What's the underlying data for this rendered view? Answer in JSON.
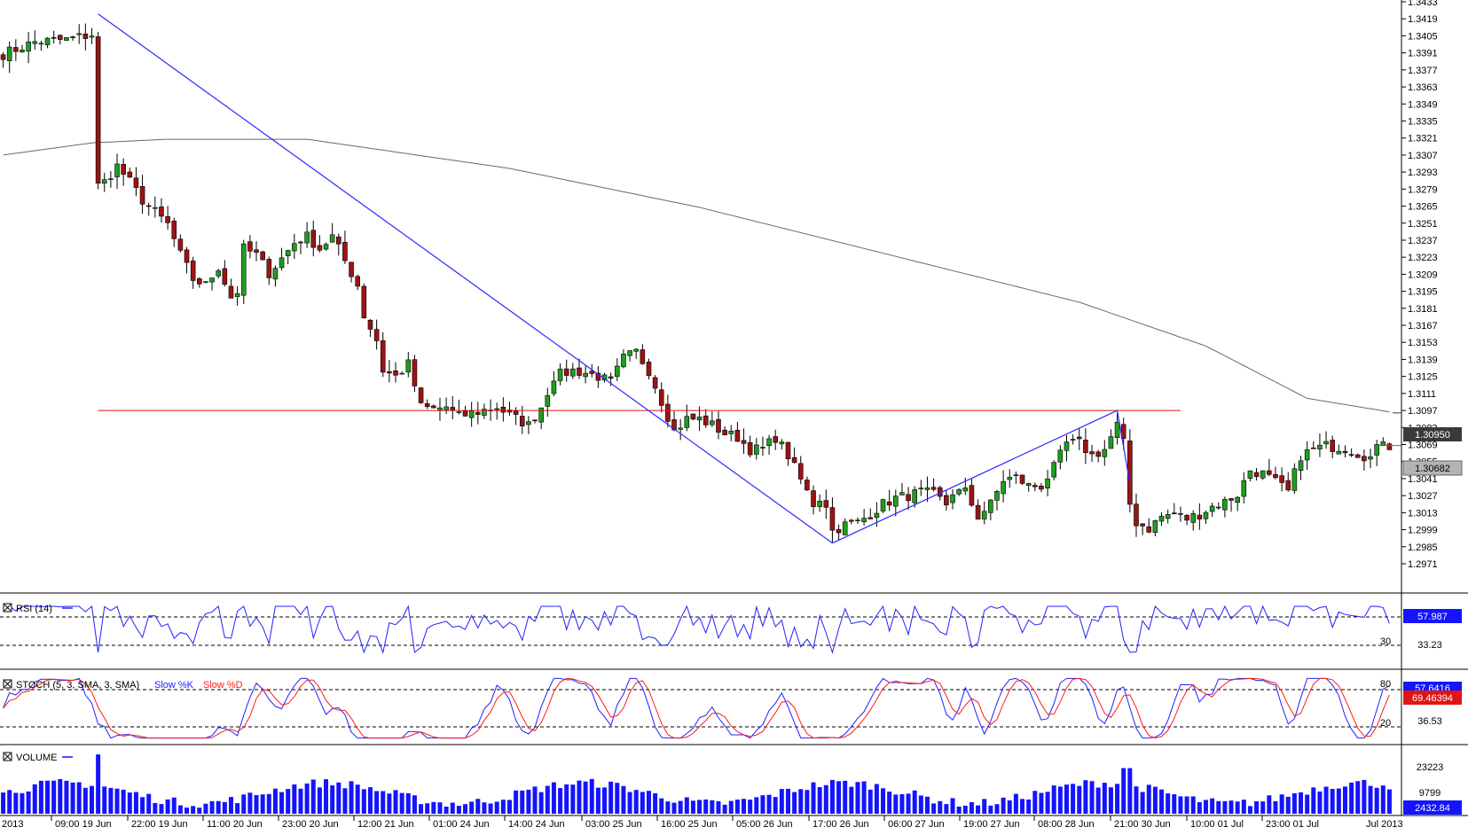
{
  "colors": {
    "background": "#ffffff",
    "bull_candle": "#1e9e1e",
    "bear_candle": "#9b1414",
    "wick": "#000000",
    "moving_average": "#6a6a6a",
    "trendline": "#2b2bff",
    "horizontal_level": "#e01010",
    "rsi_line": "#2020ff",
    "stoch_k": "#2020ff",
    "stoch_d": "#ff1a1a",
    "volume_bar": "#1414ff",
    "last_price_box": "#b4b4b4",
    "current_level_box": "#3a3a3a",
    "indicator_value_box": "#1414ff",
    "stoch_d_box": "#e01414"
  },
  "price_axis": {
    "ticks": [
      "1.3433",
      "1.3419",
      "1.3405",
      "1.3391",
      "1.3377",
      "1.3363",
      "1.3349",
      "1.3335",
      "1.3321",
      "1.3307",
      "1.3293",
      "1.3279",
      "1.3265",
      "1.3251",
      "1.3237",
      "1.3223",
      "1.3209",
      "1.3195",
      "1.3181",
      "1.3167",
      "1.3153",
      "1.3139",
      "1.3125",
      "1.3111",
      "1.3097",
      "1.3083",
      "1.3069",
      "1.3055",
      "1.3041",
      "1.3027",
      "1.3013",
      "1.2999",
      "1.2985",
      "1.2971"
    ],
    "level_marker": "1.30950",
    "last_price_marker": "1.30682"
  },
  "time_axis": {
    "labels": [
      "2013",
      "09:00 19 Jun",
      "22:00 19 Jun",
      "11:00 20 Jun",
      "23:00 20 Jun",
      "12:00 21 Jun",
      "01:00 24 Jun",
      "14:00 24 Jun",
      "03:00 25 Jun",
      "16:00 25 Jun",
      "05:00 26 Jun",
      "17:00 26 Jun",
      "06:00 27 Jun",
      "19:00 27 Jun",
      "08:00 28 Jun",
      "21:00 30 Jun",
      "10:00 01 Jul",
      "23:00 01 Jul",
      "Jul 2013"
    ]
  },
  "rsi": {
    "title": "RSI (14)",
    "level_label": "30",
    "scale_label": "33.23",
    "value": "57.987"
  },
  "stochastic": {
    "title_prefix": "STOCH (5, 3, SMA, 3, SMA)",
    "k_label": "Slow %K",
    "d_label": "Slow %D",
    "upper_level": "80",
    "lower_level": "20",
    "scale_label": "36.53",
    "k_value": "57.6416",
    "d_value": "69.46394"
  },
  "volume": {
    "title": "VOLUME",
    "scale_labels": [
      "23223",
      "9799"
    ],
    "value": "2432.84"
  },
  "chart_data": {
    "type": "candlestick",
    "title": "",
    "price_range": [
      1.2971,
      1.3433
    ],
    "horizontal_level": 1.3097,
    "moving_average_anchors": [
      [
        0,
        1.3307
      ],
      [
        14,
        1.3317
      ],
      [
        26,
        1.332
      ],
      [
        48,
        1.332
      ],
      [
        80,
        1.3296
      ],
      [
        110,
        1.3264
      ],
      [
        140,
        1.3225
      ],
      [
        170,
        1.3186
      ],
      [
        190,
        1.315
      ],
      [
        206,
        1.3107
      ],
      [
        220,
        1.3095
      ]
    ],
    "trendlines": [
      [
        [
          15,
          1.3423
        ],
        [
          131,
          1.2988
        ]
      ],
      [
        [
          131,
          1.2988
        ],
        [
          176,
          1.3097
        ]
      ],
      [
        [
          176,
          1.3097
        ],
        [
          178,
          1.3037
        ]
      ]
    ],
    "anchors": [
      [
        0,
        1.339
      ],
      [
        5,
        1.34
      ],
      [
        10,
        1.3402
      ],
      [
        14,
        1.3406
      ],
      [
        15,
        1.3282
      ],
      [
        16,
        1.3285
      ],
      [
        18,
        1.3298
      ],
      [
        20,
        1.3285
      ],
      [
        22,
        1.327
      ],
      [
        24,
        1.326
      ],
      [
        26,
        1.325
      ],
      [
        28,
        1.3225
      ],
      [
        30,
        1.3205
      ],
      [
        32,
        1.32
      ],
      [
        34,
        1.3215
      ],
      [
        36,
        1.319
      ],
      [
        37,
        1.3195
      ],
      [
        38,
        1.323
      ],
      [
        40,
        1.3225
      ],
      [
        42,
        1.321
      ],
      [
        44,
        1.3222
      ],
      [
        46,
        1.3235
      ],
      [
        48,
        1.324
      ],
      [
        50,
        1.323
      ],
      [
        52,
        1.324
      ],
      [
        54,
        1.322
      ],
      [
        56,
        1.32
      ],
      [
        57,
        1.3175
      ],
      [
        59,
        1.3155
      ],
      [
        60,
        1.313
      ],
      [
        62,
        1.3125
      ],
      [
        64,
        1.3135
      ],
      [
        66,
        1.31
      ],
      [
        68,
        1.3098
      ],
      [
        70,
        1.31
      ],
      [
        72,
        1.3092
      ],
      [
        75,
        1.3096
      ],
      [
        78,
        1.31
      ],
      [
        80,
        1.3093
      ],
      [
        83,
        1.3085
      ],
      [
        85,
        1.31
      ],
      [
        87,
        1.3125
      ],
      [
        90,
        1.313
      ],
      [
        92,
        1.3128
      ],
      [
        94,
        1.3125
      ],
      [
        96,
        1.312
      ],
      [
        98,
        1.314
      ],
      [
        100,
        1.3145
      ],
      [
        102,
        1.313
      ],
      [
        104,
        1.3105
      ],
      [
        106,
        1.308
      ],
      [
        108,
        1.309
      ],
      [
        110,
        1.309
      ],
      [
        112,
        1.3085
      ],
      [
        114,
        1.3078
      ],
      [
        116,
        1.3075
      ],
      [
        118,
        1.3065
      ],
      [
        120,
        1.3065
      ],
      [
        122,
        1.3075
      ],
      [
        124,
        1.306
      ],
      [
        126,
        1.304
      ],
      [
        128,
        1.302
      ],
      [
        129,
        1.3025
      ],
      [
        130,
        1.302
      ],
      [
        131,
        1.2998
      ],
      [
        133,
        1.3003
      ],
      [
        135,
        1.3005
      ],
      [
        137,
        1.3012
      ],
      [
        139,
        1.302
      ],
      [
        141,
        1.3025
      ],
      [
        143,
        1.3027
      ],
      [
        145,
        1.303
      ],
      [
        147,
        1.3028
      ],
      [
        149,
        1.302
      ],
      [
        150,
        1.303
      ],
      [
        152,
        1.303
      ],
      [
        154,
        1.301
      ],
      [
        156,
        1.302
      ],
      [
        158,
        1.304
      ],
      [
        160,
        1.3042
      ],
      [
        162,
        1.3035
      ],
      [
        164,
        1.3035
      ],
      [
        166,
        1.305
      ],
      [
        168,
        1.307
      ],
      [
        170,
        1.307
      ],
      [
        172,
        1.306
      ],
      [
        174,
        1.3065
      ],
      [
        176,
        1.3085
      ],
      [
        177,
        1.307
      ],
      [
        178,
        1.302
      ],
      [
        179,
        1.3005
      ],
      [
        181,
        1.3
      ],
      [
        183,
        1.301
      ],
      [
        185,
        1.3012
      ],
      [
        187,
        1.3008
      ],
      [
        189,
        1.3012
      ],
      [
        191,
        1.3018
      ],
      [
        193,
        1.3022
      ],
      [
        195,
        1.3028
      ],
      [
        197,
        1.3048
      ],
      [
        199,
        1.3045
      ],
      [
        201,
        1.3038
      ],
      [
        203,
        1.303
      ],
      [
        205,
        1.306
      ],
      [
        207,
        1.3065
      ],
      [
        209,
        1.3068
      ],
      [
        212,
        1.3066
      ],
      [
        214,
        1.3062
      ],
      [
        216,
        1.3058
      ],
      [
        217,
        1.3065
      ],
      [
        218,
        1.3074
      ],
      [
        219,
        1.3068
      ]
    ],
    "candle_count": 220,
    "rsi_range": [
      0,
      100
    ],
    "stoch_range": [
      0,
      100
    ],
    "stoch_levels": [
      20,
      80
    ],
    "volume_max": 28000
  }
}
